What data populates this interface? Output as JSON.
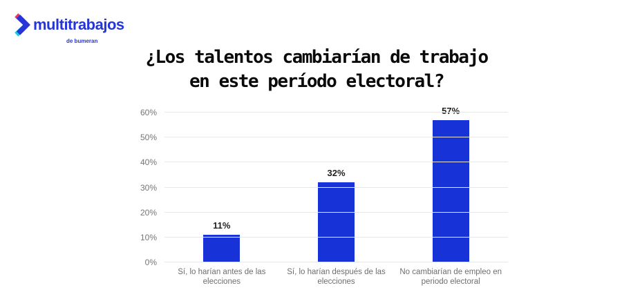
{
  "logo": {
    "brand": "multitrabajos",
    "sub": "de bumeran"
  },
  "title": {
    "line1": "¿Los talentos cambiarían de trabajo",
    "line2": "en este período electoral?"
  },
  "chart_data": {
    "type": "bar",
    "title": "¿Los talentos cambiarían de trabajo en este período electoral?",
    "categories": [
      "Sí, lo harían antes de las elecciones",
      "Sí, lo harían después de las elecciones",
      "No cambiarían de empleo en periodo electoral"
    ],
    "values": [
      11,
      32,
      57
    ],
    "value_labels": [
      "11%",
      "32%",
      "57%"
    ],
    "xlabel": "",
    "ylabel": "",
    "ylim": [
      0,
      60
    ],
    "yticks": [
      "0%",
      "10%",
      "20%",
      "30%",
      "40%",
      "50%",
      "60%"
    ],
    "grid": true,
    "legend": false,
    "bar_color": "#1733d8"
  },
  "colors": {
    "bar": "#1733d8",
    "logo_blue": "#2535d9",
    "logo_red": "#e8365f",
    "logo_cyan": "#21c9dc",
    "axis_label": "#757575",
    "category_label": "#6e6e6e",
    "gridline": "#e8e8e8",
    "value_label": "#1f1f1f",
    "title": "#0a0a0a",
    "background": "#ffffff"
  }
}
